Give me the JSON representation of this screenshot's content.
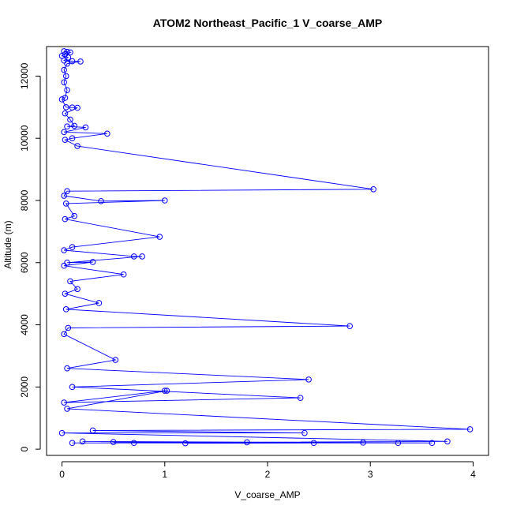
{
  "chart_data": {
    "type": "line",
    "title": "ATOM2 Northeast_Pacific_1 V_coarse_AMP",
    "xlabel": "V_coarse_AMP",
    "ylabel": "Altitude (m)",
    "xlim": [
      -0.15,
      4.15
    ],
    "ylim": [
      -200,
      12950
    ],
    "xticks": [
      0,
      1,
      2,
      3,
      4
    ],
    "yticks": [
      0,
      2000,
      4000,
      6000,
      8000,
      10000,
      12000
    ],
    "grid": false,
    "marker": "open-circle",
    "colors": {
      "series": "#0000ff",
      "axis": "#000000",
      "background": "#ffffff"
    },
    "series": [
      {
        "points": [
          [
            0.02,
            12800
          ],
          [
            0.05,
            12780
          ],
          [
            0.08,
            12760
          ],
          [
            0.03,
            12700
          ],
          [
            0.0,
            12650
          ],
          [
            0.06,
            12600
          ],
          [
            0.02,
            12500
          ],
          [
            0.1,
            12480
          ],
          [
            0.18,
            12470
          ],
          [
            0.05,
            12400
          ],
          [
            0.02,
            12200
          ],
          [
            0.04,
            12000
          ],
          [
            0.02,
            11800
          ],
          [
            0.05,
            11550
          ],
          [
            0.03,
            11300
          ],
          [
            0.0,
            11250
          ],
          [
            0.04,
            11000
          ],
          [
            0.1,
            10990
          ],
          [
            0.15,
            10980
          ],
          [
            0.03,
            10800
          ],
          [
            0.08,
            10600
          ],
          [
            0.12,
            10400
          ],
          [
            0.05,
            10380
          ],
          [
            0.23,
            10350
          ],
          [
            0.02,
            10200
          ],
          [
            0.44,
            10150
          ],
          [
            0.1,
            10000
          ],
          [
            0.03,
            9950
          ],
          [
            0.15,
            9750
          ],
          [
            3.03,
            8360
          ],
          [
            0.05,
            8300
          ],
          [
            0.02,
            8150
          ],
          [
            0.38,
            7980
          ],
          [
            1.0,
            8000
          ],
          [
            0.04,
            7900
          ],
          [
            0.12,
            7500
          ],
          [
            0.03,
            7400
          ],
          [
            0.95,
            6830
          ],
          [
            0.1,
            6500
          ],
          [
            0.02,
            6400
          ],
          [
            0.7,
            6200
          ],
          [
            0.78,
            6200
          ],
          [
            0.05,
            6000
          ],
          [
            0.3,
            6020
          ],
          [
            0.02,
            5900
          ],
          [
            0.6,
            5620
          ],
          [
            0.08,
            5400
          ],
          [
            0.15,
            5150
          ],
          [
            0.03,
            5000
          ],
          [
            0.36,
            4700
          ],
          [
            0.04,
            4500
          ],
          [
            2.8,
            3960
          ],
          [
            0.06,
            3900
          ],
          [
            0.02,
            3700
          ],
          [
            0.52,
            2870
          ],
          [
            0.05,
            2600
          ],
          [
            2.4,
            2240
          ],
          [
            0.1,
            2000
          ],
          [
            2.32,
            1650
          ],
          [
            0.02,
            1500
          ],
          [
            1.0,
            1880
          ],
          [
            1.02,
            1880
          ],
          [
            0.05,
            1300
          ],
          [
            3.97,
            640
          ],
          [
            0.3,
            600
          ],
          [
            2.36,
            520
          ],
          [
            0.0,
            520
          ],
          [
            3.75,
            250
          ],
          [
            0.1,
            200
          ],
          [
            3.6,
            200
          ],
          [
            0.2,
            250
          ],
          [
            3.27,
            200
          ],
          [
            0.5,
            230
          ],
          [
            2.93,
            210
          ],
          [
            1.2,
            190
          ],
          [
            2.45,
            200
          ],
          [
            0.7,
            200
          ],
          [
            1.8,
            220
          ]
        ]
      }
    ]
  }
}
